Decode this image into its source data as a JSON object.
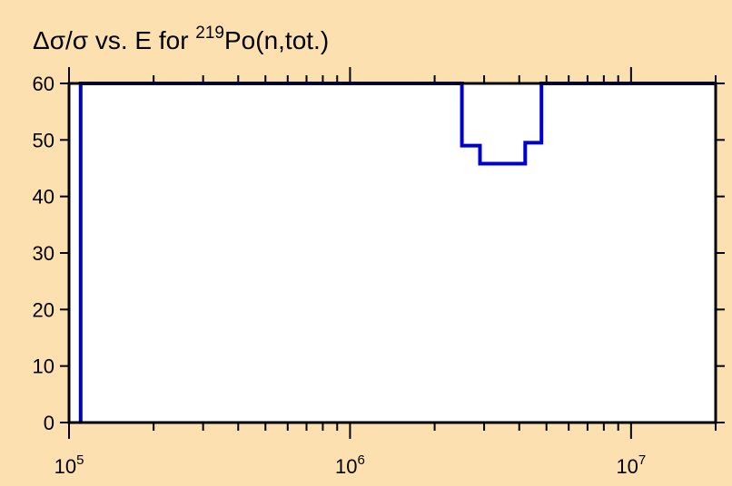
{
  "chart_data": {
    "type": "line",
    "title": "Δσ/σ vs. E for ²¹⁹Po(n,tot.)",
    "title_parts": {
      "prefix": "Δσ/σ vs. E for ",
      "sup": "219",
      "suffix": "Po(n,tot.)"
    },
    "xlabel": "",
    "ylabel": "",
    "x_scale": "log",
    "xlim": [
      100000,
      20000000
    ],
    "ylim": [
      0,
      60
    ],
    "y_ticks": [
      "0",
      "10",
      "20",
      "30",
      "40",
      "50",
      "60"
    ],
    "x_ticks": [
      {
        "base": "10",
        "exp": "5"
      },
      {
        "base": "10",
        "exp": "6"
      },
      {
        "base": "10",
        "exp": "7"
      }
    ],
    "grid": false,
    "legend": "none",
    "series": [
      {
        "style": "step",
        "color": "#0000cc",
        "points": [
          [
            110000,
            0
          ],
          [
            110000,
            60
          ],
          [
            2500000,
            60
          ],
          [
            2500000,
            49
          ],
          [
            2900000,
            49
          ],
          [
            2900000,
            45.8
          ],
          [
            4200000,
            45.8
          ],
          [
            4200000,
            49.5
          ],
          [
            4800000,
            49.5
          ],
          [
            4800000,
            60
          ],
          [
            20000000,
            60
          ]
        ]
      }
    ],
    "colors": {
      "background": "#fde0b0",
      "plot_area": "#ffffff",
      "axis": "#000000",
      "line": "#0000cc"
    }
  }
}
